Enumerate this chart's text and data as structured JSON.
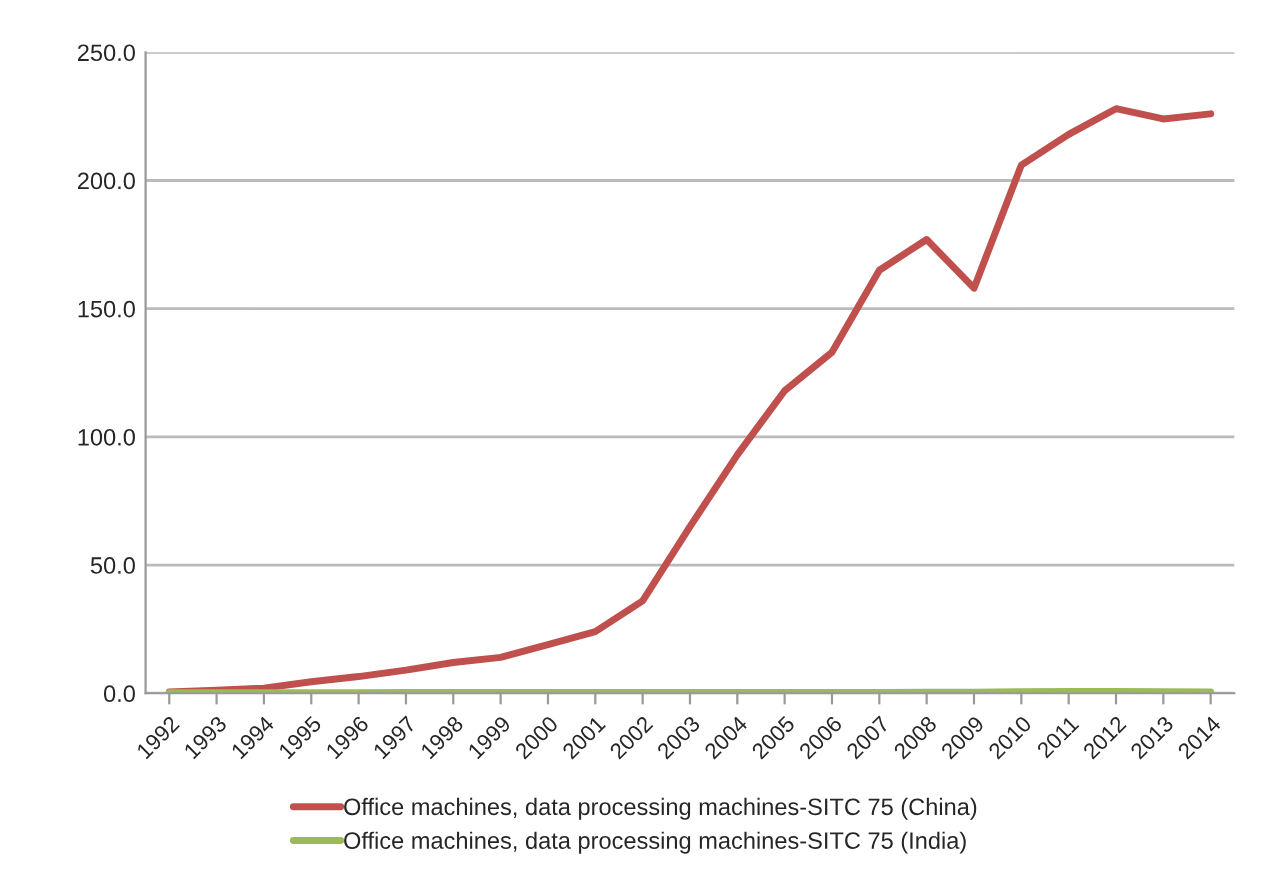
{
  "chart_data": {
    "type": "line",
    "categories": [
      "1992",
      "1993",
      "1994",
      "1995",
      "1996",
      "1997",
      "1998",
      "1999",
      "2000",
      "2001",
      "2002",
      "2003",
      "2004",
      "2005",
      "2006",
      "2007",
      "2008",
      "2009",
      "2010",
      "2011",
      "2012",
      "2013",
      "2014"
    ],
    "series": [
      {
        "name": "Office machines, data processing machines-SITC 75 (China)",
        "color": "#c0504d",
        "values": [
          0.5,
          1.2,
          2,
          4.5,
          6.5,
          9,
          12,
          14,
          19,
          24,
          36,
          65,
          93,
          118,
          133,
          165,
          177,
          158,
          206,
          218,
          228,
          224,
          226
        ]
      },
      {
        "name": "Office machines, data processing machines-SITC 75 (India)",
        "color": "#9bbb59",
        "values": [
          0.2,
          0.2,
          0.2,
          0.2,
          0.2,
          0.3,
          0.3,
          0.3,
          0.3,
          0.3,
          0.3,
          0.3,
          0.3,
          0.3,
          0.3,
          0.3,
          0.4,
          0.4,
          0.6,
          0.7,
          0.7,
          0.6,
          0.5
        ]
      }
    ],
    "ylim": [
      0,
      250
    ],
    "yticks": [
      {
        "value": 0,
        "label": "0.0"
      },
      {
        "value": 50,
        "label": "50.0"
      },
      {
        "value": 100,
        "label": "100.0"
      },
      {
        "value": 150,
        "label": "150.0"
      },
      {
        "value": 200,
        "label": "200.0"
      },
      {
        "value": 250,
        "label": "250.0"
      }
    ],
    "grid": "y",
    "legend": "bottom",
    "marker": "none",
    "line_style": "solid"
  }
}
